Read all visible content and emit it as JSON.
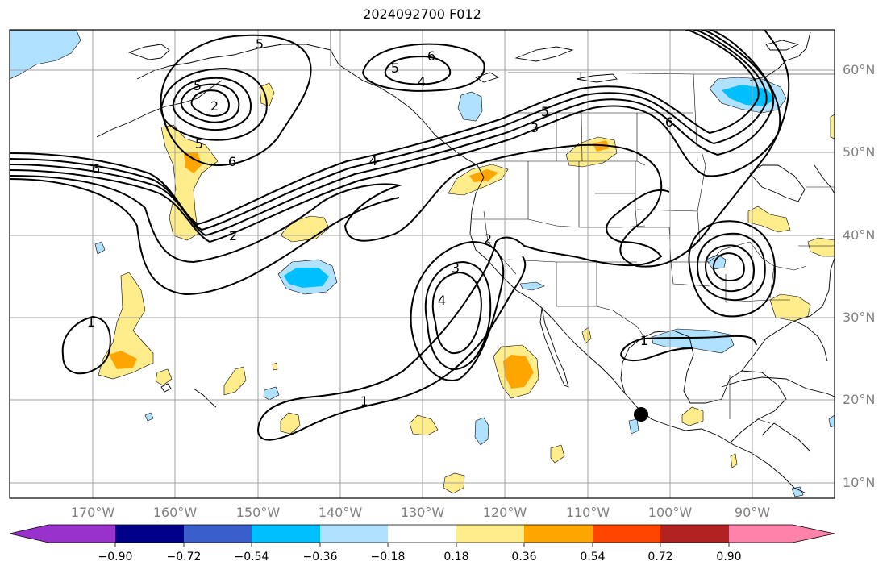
{
  "title": "2024092700 F012",
  "lat_labels": [
    {
      "text": "60°N"
    },
    {
      "text": "50°N"
    },
    {
      "text": "40°N"
    },
    {
      "text": "30°N"
    },
    {
      "text": "20°N"
    },
    {
      "text": "10°N"
    }
  ],
  "lon_labels": [
    {
      "text": "170°W"
    },
    {
      "text": "160°W"
    },
    {
      "text": "150°W"
    },
    {
      "text": "140°W"
    },
    {
      "text": "130°W"
    },
    {
      "text": "120°W"
    },
    {
      "text": "110°W"
    },
    {
      "text": "100°W"
    },
    {
      "text": "90°W"
    }
  ],
  "contour_labels": [
    "5",
    "6",
    "4",
    "5",
    "2",
    "5",
    "5",
    "6",
    "6",
    "4",
    "5",
    "3",
    "6",
    "2",
    "3",
    "4",
    "2",
    "1",
    "1",
    "1"
  ],
  "colorbar": {
    "colors": [
      "#9932cc",
      "#00008b",
      "#3a5fcd",
      "#00bfff",
      "#b0e2ff",
      "#ffffff",
      "#ffec8b",
      "#ffa500",
      "#ff4500",
      "#b22222",
      "#ff82ab"
    ],
    "ticks": [
      "−0.90",
      "−0.72",
      "−0.54",
      "−0.36",
      "−0.18",
      "0.18",
      "0.36",
      "0.54",
      "0.72",
      "0.90"
    ]
  },
  "marker": {
    "name": "location-marker",
    "color": "#000000"
  }
}
